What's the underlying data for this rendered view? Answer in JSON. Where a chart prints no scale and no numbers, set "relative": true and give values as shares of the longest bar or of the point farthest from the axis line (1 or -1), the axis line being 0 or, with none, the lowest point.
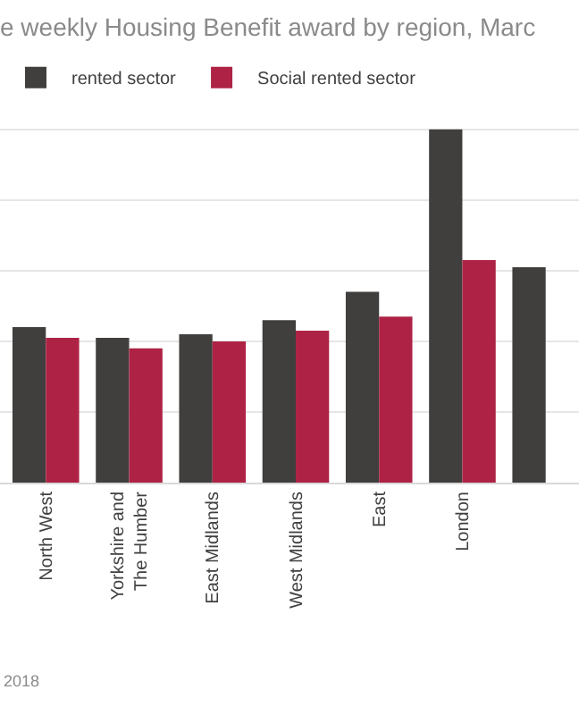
{
  "chart_data": {
    "type": "bar",
    "title": "e weekly Housing Benefit award by region, Marc",
    "relative": true,
    "grid": "y",
    "legend": "top left",
    "categories": [
      "North West",
      "Yorkshire and\nThe Humber",
      "East Midlands",
      "West Midlands",
      "East",
      "London",
      null
    ],
    "series": [
      {
        "name": "rented sector",
        "color": "#403f3e",
        "values": [
          0.44,
          0.41,
          0.42,
          0.46,
          0.54,
          1.0,
          0.61
        ]
      },
      {
        "name": "Social rented sector",
        "color": "#ae2345",
        "values": [
          0.41,
          0.38,
          0.4,
          0.43,
          0.47,
          0.63,
          null
        ]
      }
    ],
    "annotations": [
      "2018"
    ]
  }
}
